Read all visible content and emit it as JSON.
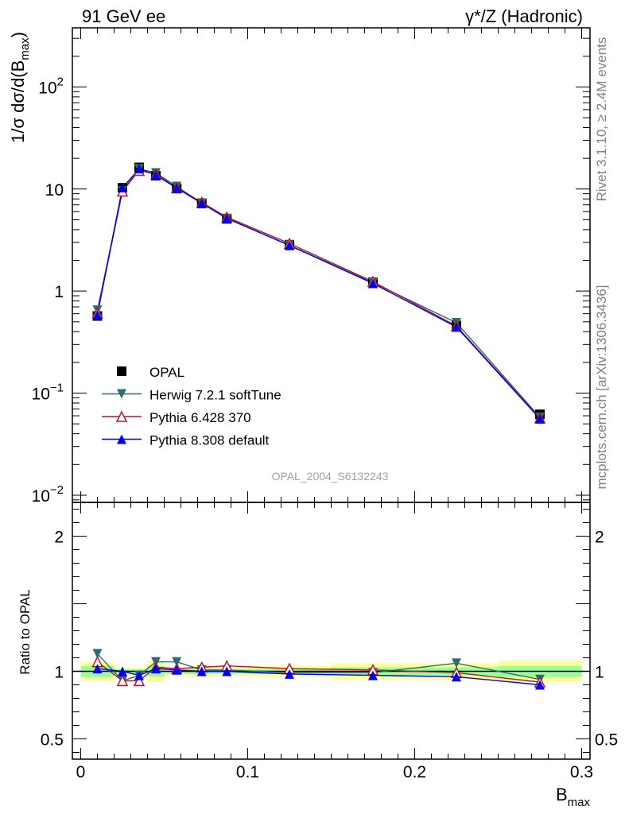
{
  "header": {
    "left": "91 GeV ee",
    "right": "γ*/Z (Hadronic)"
  },
  "side_labels": {
    "rivet": "Rivet 3.1.10, ≥ 2.4M events",
    "mcplots": "mcplots.cern.ch [arXiv:1306.3436]"
  },
  "watermark": "OPAL_2004_S6132243",
  "colors": {
    "opal": "#000000",
    "herwig": "#2f6b6b",
    "pythia6": "#b2182b",
    "pythia8": "#0000ee",
    "band_yellow": "#ffff99",
    "band_green": "#99ff99"
  },
  "chart_data": [
    {
      "type": "scatter",
      "panel": "main",
      "ylabel": "1/σ dσ/d(B",
      "ylabel_sub": "max",
      "ylabel_tail": ")",
      "yscale": "log",
      "xlim": [
        -0.005,
        0.305
      ],
      "ylim": [
        0.0085,
        380
      ],
      "yticks": [
        {
          "value": 0.01,
          "label": "10",
          "exp": "−2"
        },
        {
          "value": 0.1,
          "label": "10",
          "exp": "−1"
        },
        {
          "value": 1,
          "label": "1",
          "exp": ""
        },
        {
          "value": 10,
          "label": "10",
          "exp": ""
        },
        {
          "value": 100,
          "label": "10",
          "exp": "2"
        }
      ],
      "legend_position": "middle-left",
      "series": [
        {
          "name": "OPAL",
          "marker": "square",
          "color": "#000000",
          "x": [
            0.01,
            0.025,
            0.035,
            0.045,
            0.0575,
            0.0725,
            0.0875,
            0.125,
            0.175,
            0.225,
            0.275
          ],
          "y": [
            0.57,
            10.3,
            16.3,
            13.5,
            10.1,
            7.2,
            5.1,
            2.85,
            1.22,
            0.46,
            0.062
          ]
        },
        {
          "name": "Herwig 7.2.1 softTune",
          "marker": "triangle-down",
          "color": "#2f6b6b",
          "x": [
            0.01,
            0.025,
            0.035,
            0.045,
            0.0575,
            0.0725,
            0.0875,
            0.125,
            0.175,
            0.225,
            0.275
          ],
          "y": [
            0.65,
            9.6,
            15.8,
            14.4,
            10.6,
            7.3,
            5.15,
            2.82,
            1.21,
            0.49,
            0.058
          ]
        },
        {
          "name": "Pythia 6.428 370",
          "marker": "triangle-up-open",
          "color": "#b2182b",
          "x": [
            0.01,
            0.025,
            0.035,
            0.045,
            0.0575,
            0.0725,
            0.0875,
            0.125,
            0.175,
            0.225,
            0.275
          ],
          "y": [
            0.61,
            9.5,
            15.2,
            14.0,
            10.3,
            7.4,
            5.3,
            2.93,
            1.24,
            0.455,
            0.057
          ]
        },
        {
          "name": "Pythia 8.308 default",
          "marker": "triangle-up",
          "color": "#0000ee",
          "x": [
            0.01,
            0.025,
            0.035,
            0.045,
            0.0575,
            0.0725,
            0.0875,
            0.125,
            0.175,
            0.225,
            0.275
          ],
          "y": [
            0.585,
            10.3,
            15.8,
            13.7,
            10.2,
            7.25,
            5.15,
            2.8,
            1.19,
            0.445,
            0.056
          ]
        }
      ]
    },
    {
      "type": "line",
      "panel": "ratio",
      "ylabel": "Ratio to OPAL",
      "xlabel": "B",
      "xlabel_sub": "max",
      "xlim": [
        -0.005,
        0.305
      ],
      "ylim": [
        0.35,
        2.25
      ],
      "xticks": [
        {
          "value": 0,
          "label": "0"
        },
        {
          "value": 0.1,
          "label": "0.1"
        },
        {
          "value": 0.2,
          "label": "0.2"
        },
        {
          "value": 0.3,
          "label": "0.3"
        }
      ],
      "yticks": [
        {
          "value": 0.5,
          "label": "0.5"
        },
        {
          "value": 1,
          "label": "1"
        },
        {
          "value": 2,
          "label": "2"
        }
      ],
      "bands": [
        {
          "x0": 0.0,
          "x1": 0.02,
          "yellow": [
            0.93,
            1.07
          ],
          "green": [
            0.96,
            1.04
          ]
        },
        {
          "x0": 0.02,
          "x1": 0.03,
          "yellow": [
            0.97,
            1.03
          ],
          "green": [
            0.985,
            1.015
          ]
        },
        {
          "x0": 0.03,
          "x1": 0.04,
          "yellow": [
            0.97,
            1.03
          ],
          "green": [
            0.985,
            1.015
          ]
        },
        {
          "x0": 0.04,
          "x1": 0.05,
          "yellow": [
            0.92,
            1.08
          ],
          "green": [
            0.96,
            1.04
          ]
        },
        {
          "x0": 0.05,
          "x1": 0.065,
          "yellow": [
            0.97,
            1.03
          ],
          "green": [
            0.985,
            1.015
          ]
        },
        {
          "x0": 0.065,
          "x1": 0.08,
          "yellow": [
            0.96,
            1.04
          ],
          "green": [
            0.98,
            1.02
          ]
        },
        {
          "x0": 0.08,
          "x1": 0.1,
          "yellow": [
            0.97,
            1.03
          ],
          "green": [
            0.985,
            1.015
          ]
        },
        {
          "x0": 0.1,
          "x1": 0.15,
          "yellow": [
            0.96,
            1.04
          ],
          "green": [
            0.98,
            1.02
          ]
        },
        {
          "x0": 0.15,
          "x1": 0.2,
          "yellow": [
            0.94,
            1.06
          ],
          "green": [
            0.97,
            1.03
          ]
        },
        {
          "x0": 0.2,
          "x1": 0.25,
          "yellow": [
            0.94,
            1.06
          ],
          "green": [
            0.97,
            1.03
          ]
        },
        {
          "x0": 0.25,
          "x1": 0.3,
          "yellow": [
            0.92,
            1.08
          ],
          "green": [
            0.96,
            1.04
          ]
        }
      ],
      "series": [
        {
          "name": "Herwig 7.2.1 softTune",
          "marker": "triangle-down",
          "color": "#2f6b6b",
          "x": [
            0.01,
            0.025,
            0.035,
            0.045,
            0.0575,
            0.0725,
            0.0875,
            0.125,
            0.175,
            0.225,
            0.275
          ],
          "y": [
            1.13,
            0.93,
            0.97,
            1.07,
            1.07,
            1.01,
            1.01,
            0.99,
            0.99,
            1.06,
            0.94
          ]
        },
        {
          "name": "Pythia 6.428 370",
          "marker": "triangle-up-open",
          "color": "#b2182b",
          "x": [
            0.01,
            0.025,
            0.035,
            0.045,
            0.0575,
            0.0725,
            0.0875,
            0.125,
            0.175,
            0.225,
            0.275
          ],
          "y": [
            1.07,
            0.93,
            0.93,
            1.03,
            1.02,
            1.03,
            1.04,
            1.02,
            1.01,
            0.99,
            0.92
          ]
        },
        {
          "name": "Pythia 8.308 default",
          "marker": "triangle-up",
          "color": "#0000ee",
          "x": [
            0.01,
            0.025,
            0.035,
            0.045,
            0.0575,
            0.0725,
            0.0875,
            0.125,
            0.175,
            0.225,
            0.275
          ],
          "y": [
            1.02,
            1.0,
            0.97,
            1.02,
            1.01,
            1.0,
            1.0,
            0.98,
            0.97,
            0.96,
            0.9
          ]
        }
      ]
    }
  ]
}
